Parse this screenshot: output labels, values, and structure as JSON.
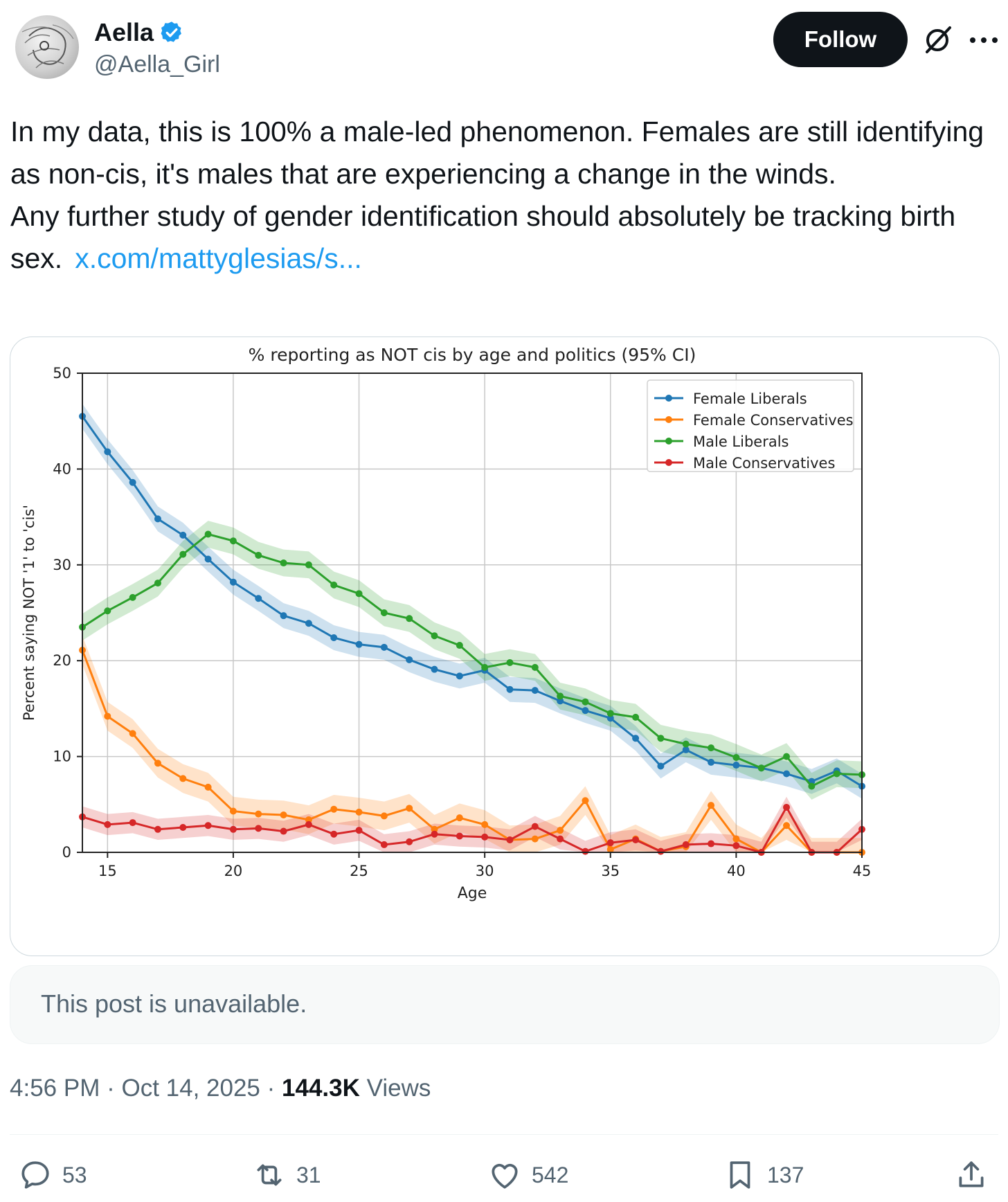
{
  "author": {
    "name": "Aella",
    "handle": "@Aella_Girl"
  },
  "header": {
    "follow_label": "Follow"
  },
  "post": {
    "text_p1": "In my data, this is 100% a male-led phenomenon. Females are still identifying as non-cis, it's males that are experiencing a change in the winds.",
    "text_p2": "Any further study of gender identification should absolutely be tracking birth sex.",
    "link_text": "x.com/mattyglesias/s..."
  },
  "quote": {
    "text": "This post is unavailable."
  },
  "meta": {
    "time": "4:56 PM",
    "date": "Oct 14, 2025",
    "views_count": "144.3K",
    "views_label": "Views",
    "separator": "·"
  },
  "actions": {
    "replies": "53",
    "reposts": "31",
    "likes": "542",
    "bookmarks": "137"
  },
  "colors": {
    "accent": "#1d9bf0",
    "female_liberals": "#1f77b4",
    "female_conservatives": "#ff7f0e",
    "male_liberals": "#2ca02c",
    "male_conservatives": "#d62728"
  },
  "chart_data": {
    "type": "line",
    "title": "% reporting as NOT cis by age and politics (95% CI)",
    "xlabel": "Age",
    "ylabel": "Percent saying NOT '1' to 'cis'",
    "xlim": [
      14,
      45
    ],
    "ylim": [
      0,
      50
    ],
    "xticks": [
      15,
      20,
      25,
      30,
      35,
      40,
      45
    ],
    "yticks": [
      0,
      10,
      20,
      30,
      40,
      50
    ],
    "grid": true,
    "legend_position": "top-right",
    "x": [
      14,
      15,
      16,
      17,
      18,
      19,
      20,
      21,
      22,
      23,
      24,
      25,
      26,
      27,
      28,
      29,
      30,
      31,
      32,
      33,
      34,
      35,
      36,
      37,
      38,
      39,
      40,
      41,
      42,
      43,
      44,
      45
    ],
    "series": [
      {
        "name": "Female Liberals",
        "color": "#1f77b4",
        "ci": 1.3,
        "values": [
          45.5,
          41.8,
          38.6,
          34.8,
          33.1,
          30.6,
          28.2,
          26.5,
          24.7,
          23.9,
          22.4,
          21.7,
          21.4,
          20.1,
          19.1,
          18.4,
          19.0,
          17.0,
          16.9,
          15.8,
          14.8,
          14.0,
          11.9,
          9.0,
          10.7,
          9.4,
          9.1,
          8.8,
          8.2,
          7.4,
          8.5,
          6.9
        ]
      },
      {
        "name": "Female Conservatives",
        "color": "#ff7f0e",
        "ci": 1.5,
        "values": [
          21.1,
          14.2,
          12.4,
          9.3,
          7.7,
          6.8,
          4.3,
          4.0,
          3.9,
          3.4,
          4.5,
          4.2,
          3.8,
          4.6,
          2.4,
          3.6,
          2.9,
          1.3,
          1.4,
          2.3,
          5.4,
          0.3,
          1.4,
          0.1,
          0.6,
          4.9,
          1.4,
          0.0,
          2.8,
          0.0,
          0.0,
          0.0
        ]
      },
      {
        "name": "Male Liberals",
        "color": "#2ca02c",
        "ci": 1.4,
        "values": [
          23.5,
          25.2,
          26.6,
          28.1,
          31.1,
          33.2,
          32.5,
          31.0,
          30.2,
          30.0,
          27.9,
          27.0,
          25.0,
          24.4,
          22.6,
          21.6,
          19.3,
          19.8,
          19.3,
          16.3,
          15.7,
          14.5,
          14.1,
          11.9,
          11.3,
          10.9,
          9.9,
          8.8,
          10.0,
          6.9,
          8.2,
          8.1
        ]
      },
      {
        "name": "Male Conservatives",
        "color": "#d62728",
        "ci": 1.1,
        "values": [
          3.7,
          2.9,
          3.1,
          2.4,
          2.6,
          2.8,
          2.4,
          2.5,
          2.2,
          2.9,
          1.9,
          2.3,
          0.8,
          1.1,
          1.9,
          1.7,
          1.6,
          1.3,
          2.7,
          1.4,
          0.1,
          1.0,
          1.3,
          0.1,
          0.8,
          0.9,
          0.7,
          0.0,
          4.7,
          0.0,
          0.0,
          2.4
        ]
      }
    ]
  }
}
